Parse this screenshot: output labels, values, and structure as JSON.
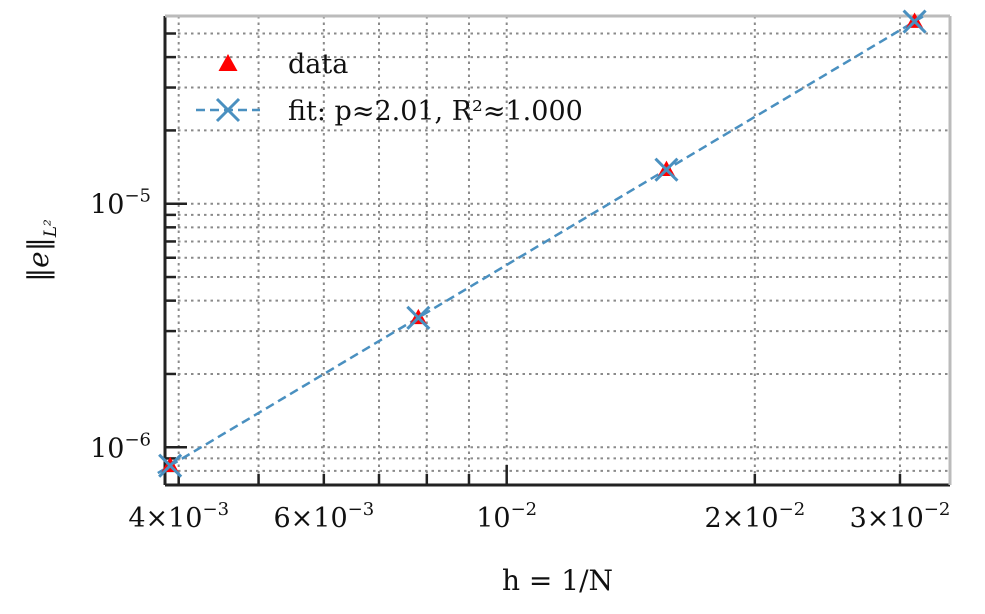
{
  "chart_data": {
    "type": "scatter",
    "title": "",
    "xlabel": "h = 1/N",
    "ylabel_base": "‖e‖",
    "ylabel_sub": "L²",
    "xscale": "log",
    "yscale": "log",
    "xlim": [
      0.00385,
      0.0345
    ],
    "ylim": [
      7e-07,
      5.9e-05
    ],
    "grid": true,
    "legend_position": "top-left",
    "x_ticks": [
      {
        "value": 0.004,
        "base": "4×10",
        "exp": "−3"
      },
      {
        "value": 0.006,
        "base": "6×10",
        "exp": "−3"
      },
      {
        "value": 0.01,
        "base": "10",
        "exp": "−2"
      },
      {
        "value": 0.02,
        "base": "2×10",
        "exp": "−2"
      },
      {
        "value": 0.03,
        "base": "3×10",
        "exp": "−2"
      }
    ],
    "y_ticks": [
      {
        "value": 1e-06,
        "base": "10",
        "exp": "−6"
      },
      {
        "value": 1e-05,
        "base": "10",
        "exp": "−5"
      }
    ],
    "series": [
      {
        "name": "data",
        "kind": "marker",
        "marker": "triangle",
        "color": "#ff0000",
        "x": [
          0.003906,
          0.007813,
          0.015625,
          0.03125
        ],
        "y": [
          8.4e-07,
          3.4e-06,
          1.38e-05,
          5.6e-05
        ]
      },
      {
        "name": "fit: p≈2.01, R²≈1.000",
        "kind": "line-marker",
        "marker": "x",
        "linestyle": "dashed",
        "color": "#4a90c0",
        "x": [
          0.003906,
          0.007813,
          0.015625,
          0.03125
        ],
        "y": [
          8.4e-07,
          3.4e-06,
          1.38e-05,
          5.6e-05
        ]
      }
    ]
  }
}
